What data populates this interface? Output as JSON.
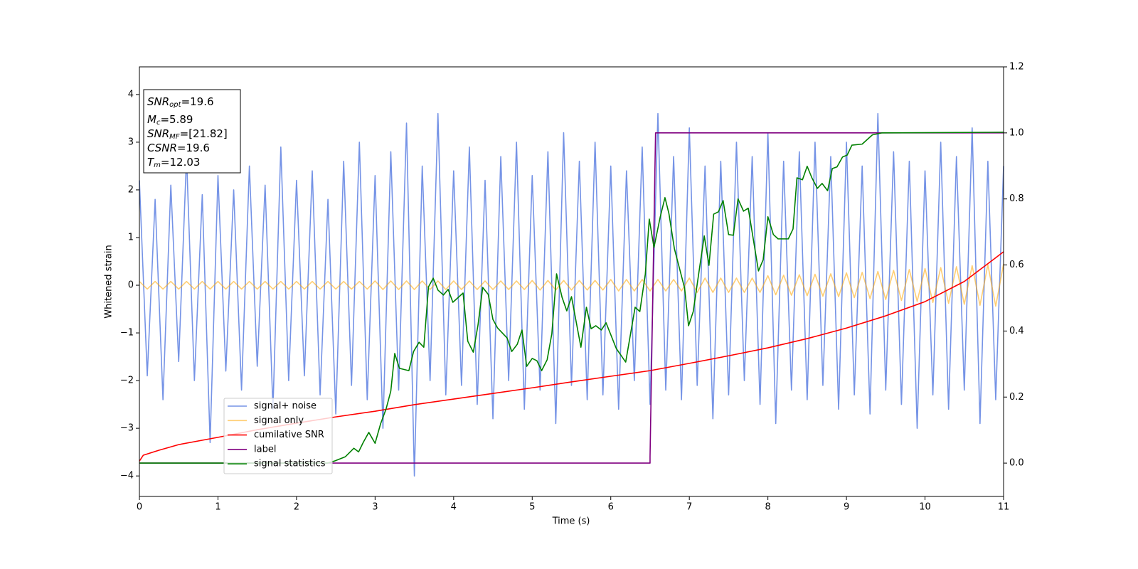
{
  "chart_data": {
    "type": "line",
    "xlabel": "Time (s)",
    "ylabel": "Whitened strain",
    "xlim": [
      0,
      11
    ],
    "ylim": [
      -4.43,
      4.58
    ],
    "y2lim": [
      -0.101,
      1.2
    ],
    "xticks": [
      0,
      1,
      2,
      3,
      4,
      5,
      6,
      7,
      8,
      9,
      10,
      11
    ],
    "yticks": [
      {
        "value": -4,
        "label": "−4"
      },
      {
        "value": -3,
        "label": "−3"
      },
      {
        "value": -2,
        "label": "−2"
      },
      {
        "value": -1,
        "label": "−1"
      },
      0,
      1,
      2,
      3,
      4
    ],
    "y2ticks": [
      {
        "value": 0,
        "label": "0.0"
      },
      0.2,
      0.4,
      0.6,
      0.8,
      {
        "value": 1,
        "label": "1.0"
      },
      1.2
    ],
    "legend_loc": "lower left",
    "stats": [
      {
        "symbol": "SNR",
        "subscript": "opt",
        "text": "=19.6"
      },
      {
        "symbol": "M",
        "subscript": "c",
        "text": "=5.89"
      },
      {
        "symbol": "SNR",
        "subscript": "MF",
        "text": "=[21.82]"
      },
      {
        "symbol": "CSNR",
        "text": "=19.6"
      },
      {
        "symbol": "T",
        "subscript": "m",
        "text": "=12.03"
      }
    ],
    "x": [
      0,
      0.1,
      0.2,
      0.3,
      0.4,
      0.5,
      0.6,
      0.7,
      0.8,
      0.9,
      1,
      1.1,
      1.2,
      1.3,
      1.4,
      1.5,
      1.6,
      1.7,
      1.8,
      1.9,
      2,
      2.1,
      2.2,
      2.3,
      2.4,
      2.5,
      2.6,
      2.7,
      2.8,
      2.9,
      3,
      3.1,
      3.2,
      3.3,
      3.4,
      3.5,
      3.6,
      3.7,
      3.8,
      3.9,
      4,
      4.1,
      4.2,
      4.3,
      4.4,
      4.5,
      4.6,
      4.7,
      4.8,
      4.9,
      5,
      5.1,
      5.2,
      5.3,
      5.4,
      5.5,
      5.6,
      5.7,
      5.8,
      5.9,
      6,
      6.1,
      6.2,
      6.3,
      6.4,
      6.5,
      6.6,
      6.7,
      6.8,
      6.9,
      7,
      7.1,
      7.2,
      7.3,
      7.4,
      7.5,
      7.6,
      7.7,
      7.8,
      7.9,
      8,
      8.1,
      8.2,
      8.3,
      8.4,
      8.5,
      8.6,
      8.7,
      8.8,
      8.9,
      9,
      9.1,
      9.2,
      9.3,
      9.4,
      9.5,
      9.6,
      9.7,
      9.8,
      9.9,
      10,
      10.1,
      10.2,
      10.3,
      10.4,
      10.5,
      10.6,
      10.7,
      10.8,
      10.9,
      11
    ],
    "series": [
      {
        "name": "signal+ noise",
        "color": "#7593e6",
        "values": [
          2.2,
          -1.9,
          1.8,
          -2.4,
          2.1,
          -1.6,
          2.7,
          -2.0,
          1.9,
          -3.3,
          2.3,
          -1.8,
          2.0,
          -2.2,
          2.5,
          -1.7,
          2.1,
          -2.6,
          2.9,
          -2.0,
          2.2,
          -1.9,
          2.4,
          -2.3,
          1.8,
          -2.7,
          2.6,
          -2.1,
          3.0,
          -2.4,
          2.3,
          -3.0,
          2.8,
          -2.2,
          3.4,
          -4.0,
          2.5,
          -2.0,
          3.6,
          -2.3,
          2.4,
          -2.1,
          2.9,
          -2.5,
          2.2,
          -2.8,
          2.7,
          -2.0,
          3.0,
          -2.6,
          2.3,
          -2.2,
          2.8,
          -2.9,
          3.2,
          -2.1,
          2.6,
          -2.4,
          3.0,
          -2.3,
          2.5,
          -2.6,
          2.4,
          -2.0,
          2.9,
          -2.5,
          3.6,
          -2.2,
          2.7,
          -2.4,
          3.3,
          -2.1,
          2.5,
          -2.8,
          2.6,
          -2.3,
          3.0,
          -2.0,
          2.7,
          -2.5,
          3.2,
          -2.9,
          2.6,
          -2.2,
          2.8,
          -2.4,
          3.0,
          -2.1,
          2.7,
          -2.6,
          3.0,
          -2.3,
          2.5,
          -2.7,
          3.6,
          -2.2,
          2.8,
          -2.5,
          2.6,
          -3.0,
          2.4,
          -2.3,
          3.0,
          -2.6,
          2.7,
          -2.2,
          3.3,
          -2.9,
          2.6,
          -2.4,
          2.5
        ]
      },
      {
        "name": "signal only",
        "color": "#ffa500",
        "values": [
          0.08,
          -0.08,
          0.08,
          -0.08,
          0.08,
          -0.08,
          0.08,
          -0.08,
          0.08,
          -0.08,
          0.08,
          -0.08,
          0.08,
          -0.08,
          0.08,
          -0.08,
          0.08,
          -0.08,
          0.08,
          -0.08,
          0.08,
          -0.08,
          0.08,
          -0.08,
          0.08,
          -0.08,
          0.08,
          -0.08,
          0.08,
          -0.08,
          0.09,
          -0.09,
          0.09,
          -0.09,
          0.09,
          -0.09,
          0.09,
          -0.09,
          0.09,
          -0.09,
          0.09,
          -0.09,
          0.09,
          -0.09,
          0.09,
          -0.09,
          0.09,
          -0.09,
          0.09,
          -0.09,
          0.1,
          -0.1,
          0.1,
          -0.1,
          0.1,
          -0.1,
          0.1,
          -0.1,
          0.1,
          -0.1,
          0.12,
          -0.12,
          0.12,
          -0.12,
          0.12,
          -0.12,
          0.12,
          -0.12,
          0.12,
          -0.12,
          0.15,
          -0.15,
          0.15,
          -0.15,
          0.15,
          -0.15,
          0.15,
          -0.15,
          0.15,
          -0.15,
          0.2,
          -0.2,
          0.21,
          -0.21,
          0.22,
          -0.22,
          0.23,
          -0.23,
          0.24,
          -0.24,
          0.26,
          -0.26,
          0.27,
          -0.28,
          0.29,
          -0.3,
          0.31,
          -0.32,
          0.33,
          -0.34,
          0.35,
          -0.36,
          0.37,
          -0.38,
          0.39,
          -0.4,
          0.41,
          -0.42,
          0.43,
          -0.44,
          0.45
        ]
      },
      {
        "name": "cumilative SNR",
        "color": "#ff0000",
        "axis": "y2",
        "x": [
          0,
          0.05,
          0.25,
          0.5,
          1,
          1.5,
          2,
          2.5,
          3,
          3.5,
          4,
          4.5,
          5,
          5.5,
          6,
          6.5,
          7,
          7.5,
          8,
          8.5,
          9,
          9.5,
          10,
          10.5,
          11
        ],
        "values": [
          0.006,
          0.024,
          0.039,
          0.056,
          0.078,
          0.101,
          0.121,
          0.14,
          0.157,
          0.177,
          0.194,
          0.211,
          0.228,
          0.246,
          0.263,
          0.28,
          0.302,
          0.325,
          0.349,
          0.377,
          0.409,
          0.446,
          0.489,
          0.55,
          0.64
        ]
      },
      {
        "name": "label",
        "color": "#800080",
        "axis": "y2",
        "x": [
          0,
          6.5,
          6.5,
          6.57,
          11
        ],
        "values": [
          0,
          0,
          0.02,
          1,
          1
        ]
      },
      {
        "name": "signal statistics",
        "color": "#008000",
        "axis": "y2",
        "x": [
          0,
          2.39,
          2.48,
          2.62,
          2.73,
          2.79,
          2.85,
          2.92,
          3.0,
          3.07,
          3.14,
          3.2,
          3.25,
          3.31,
          3.43,
          3.49,
          3.56,
          3.62,
          3.68,
          3.74,
          3.8,
          3.87,
          3.93,
          3.99,
          4.12,
          4.18,
          4.25,
          4.31,
          4.37,
          4.44,
          4.5,
          4.56,
          4.68,
          4.74,
          4.81,
          4.87,
          4.93,
          5.0,
          5.06,
          5.12,
          5.19,
          5.25,
          5.31,
          5.38,
          5.44,
          5.5,
          5.62,
          5.69,
          5.75,
          5.81,
          5.88,
          5.94,
          6.07,
          6.19,
          6.31,
          6.37,
          6.44,
          6.49,
          6.55,
          6.63,
          6.69,
          6.74,
          6.81,
          6.94,
          6.99,
          7.05,
          7.13,
          7.19,
          7.25,
          7.31,
          7.37,
          7.43,
          7.5,
          7.56,
          7.62,
          7.69,
          7.75,
          7.88,
          7.94,
          8.0,
          8.07,
          8.13,
          8.26,
          8.32,
          8.37,
          8.44,
          8.5,
          8.56,
          8.63,
          8.69,
          8.76,
          8.82,
          8.88,
          8.95,
          9.01,
          9.07,
          9.2,
          9.33,
          9.45,
          11
        ],
        "values": [
          0,
          0,
          0.006,
          0.019,
          0.045,
          0.034,
          0.063,
          0.093,
          0.06,
          0.119,
          0.164,
          0.218,
          0.332,
          0.287,
          0.28,
          0.338,
          0.366,
          0.351,
          0.534,
          0.56,
          0.524,
          0.509,
          0.526,
          0.487,
          0.515,
          0.369,
          0.336,
          0.418,
          0.532,
          0.511,
          0.435,
          0.409,
          0.379,
          0.338,
          0.36,
          0.403,
          0.293,
          0.317,
          0.31,
          0.28,
          0.313,
          0.392,
          0.573,
          0.502,
          0.461,
          0.504,
          0.351,
          0.472,
          0.407,
          0.416,
          0.403,
          0.425,
          0.347,
          0.306,
          0.472,
          0.459,
          0.573,
          0.739,
          0.653,
          0.746,
          0.804,
          0.756,
          0.649,
          0.53,
          0.416,
          0.459,
          0.591,
          0.688,
          0.599,
          0.754,
          0.761,
          0.795,
          0.692,
          0.69,
          0.8,
          0.763,
          0.772,
          0.582,
          0.616,
          0.746,
          0.692,
          0.679,
          0.679,
          0.709,
          0.864,
          0.858,
          0.899,
          0.864,
          0.832,
          0.847,
          0.825,
          0.892,
          0.897,
          0.927,
          0.933,
          0.963,
          0.966,
          0.994,
          1.0,
          1.002
        ]
      }
    ]
  }
}
